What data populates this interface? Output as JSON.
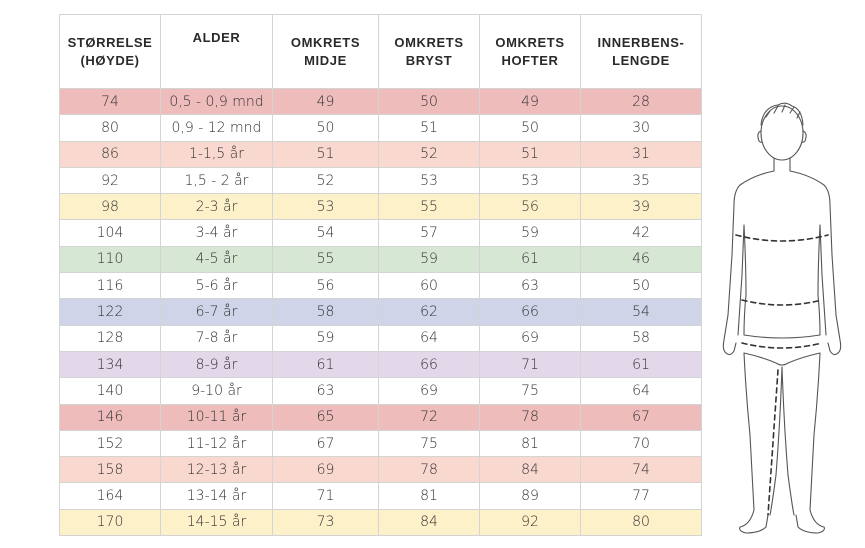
{
  "headers": [
    {
      "line1": "STØRRELSE",
      "line2": "(HØYDE)"
    },
    {
      "line1": "ALDER",
      "line2": ""
    },
    {
      "line1": "OMKRETS",
      "line2": "MIDJE"
    },
    {
      "line1": "OMKRETS",
      "line2": "BRYST"
    },
    {
      "line1": "OMKRETS",
      "line2": "HOFTER"
    },
    {
      "line1": "INNERBENS-",
      "line2": "LENGDE"
    }
  ],
  "rows": [
    {
      "size": "74",
      "age": "0,5 - 0,9 mnd",
      "waist": "49",
      "chest": "50",
      "hips": "49",
      "inseam": "28",
      "color": "#efbcbc"
    },
    {
      "size": "80",
      "age": "0,9 - 12 mnd",
      "waist": "50",
      "chest": "51",
      "hips": "50",
      "inseam": "30",
      "color": "#ffffff"
    },
    {
      "size": "86",
      "age": "1-1,5 år",
      "waist": "51",
      "chest": "52",
      "hips": "51",
      "inseam": "31",
      "color": "#f9d9cf"
    },
    {
      "size": "92",
      "age": "1,5 - 2 år",
      "waist": "52",
      "chest": "53",
      "hips": "53",
      "inseam": "35",
      "color": "#ffffff"
    },
    {
      "size": "98",
      "age": "2-3 år",
      "waist": "53",
      "chest": "55",
      "hips": "56",
      "inseam": "39",
      "color": "#fcf1c8"
    },
    {
      "size": "104",
      "age": "3-4 år",
      "waist": "54",
      "chest": "57",
      "hips": "59",
      "inseam": "42",
      "color": "#ffffff"
    },
    {
      "size": "110",
      "age": "4-5 år",
      "waist": "55",
      "chest": "59",
      "hips": "61",
      "inseam": "46",
      "color": "#d6e7d4"
    },
    {
      "size": "116",
      "age": "5-6 år",
      "waist": "56",
      "chest": "60",
      "hips": "63",
      "inseam": "50",
      "color": "#ffffff"
    },
    {
      "size": "122",
      "age": "6-7 år",
      "waist": "58",
      "chest": "62",
      "hips": "66",
      "inseam": "54",
      "color": "#cfd4e8"
    },
    {
      "size": "128",
      "age": "7-8 år",
      "waist": "59",
      "chest": "64",
      "hips": "69",
      "inseam": "58",
      "color": "#ffffff"
    },
    {
      "size": "134",
      "age": "8-9 år",
      "waist": "61",
      "chest": "66",
      "hips": "71",
      "inseam": "61",
      "color": "#e2d8ea"
    },
    {
      "size": "140",
      "age": "9-10 år",
      "waist": "63",
      "chest": "69",
      "hips": "75",
      "inseam": "64",
      "color": "#ffffff"
    },
    {
      "size": "146",
      "age": "10-11 år",
      "waist": "65",
      "chest": "72",
      "hips": "78",
      "inseam": "67",
      "color": "#efbcbc"
    },
    {
      "size": "152",
      "age": "11-12 år",
      "waist": "67",
      "chest": "75",
      "hips": "81",
      "inseam": "70",
      "color": "#ffffff"
    },
    {
      "size": "158",
      "age": "12-13 år",
      "waist": "69",
      "chest": "78",
      "hips": "84",
      "inseam": "74",
      "color": "#f9d9cf"
    },
    {
      "size": "164",
      "age": "13-14 år",
      "waist": "71",
      "chest": "81",
      "hips": "89",
      "inseam": "77",
      "color": "#ffffff"
    },
    {
      "size": "170",
      "age": "14-15 år",
      "waist": "73",
      "chest": "84",
      "hips": "92",
      "inseam": "80",
      "color": "#fcf1c8"
    }
  ]
}
